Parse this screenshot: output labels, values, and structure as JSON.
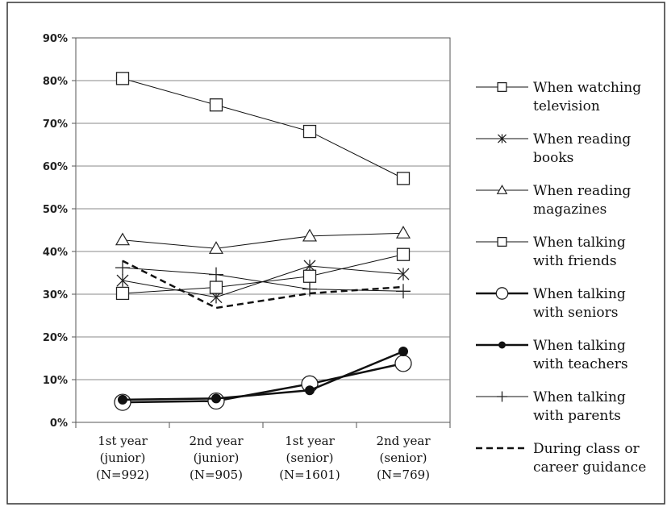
{
  "chart_data": {
    "type": "line",
    "title": "",
    "xlabel": "",
    "ylabel": "",
    "ylim": [
      0,
      90
    ],
    "yticks": [
      "0%",
      "10%",
      "20%",
      "30%",
      "40%",
      "50%",
      "60%",
      "70%",
      "80%",
      "90%"
    ],
    "categories": [
      [
        "1st year",
        "(junior)",
        "(N=992)"
      ],
      [
        "2nd year",
        "(junior)",
        "(N=905)"
      ],
      [
        "1st year",
        "(senior)",
        "(N=1601)"
      ],
      [
        "2nd year",
        "(senior)",
        "(N=769)"
      ]
    ],
    "grid": "horizontal",
    "legend_position": "right",
    "series": [
      {
        "name": [
          "When watching",
          "television"
        ],
        "values": [
          80.5,
          74.3,
          68.1,
          57.1
        ],
        "marker": "square",
        "dash": "solid",
        "width": 1
      },
      {
        "name": [
          "When reading",
          "books"
        ],
        "values": [
          33.2,
          29.3,
          36.6,
          34.7
        ],
        "marker": "asterisk",
        "dash": "solid",
        "width": 1
      },
      {
        "name": [
          "When reading",
          "magazines"
        ],
        "values": [
          42.7,
          40.7,
          43.6,
          44.3
        ],
        "marker": "triangle",
        "dash": "solid",
        "width": 1
      },
      {
        "name": [
          "When talking",
          "with friends"
        ],
        "values": [
          30.2,
          31.6,
          34.2,
          39.3
        ],
        "marker": "square",
        "dash": "solid",
        "width": 1
      },
      {
        "name": [
          "When talking",
          "with seniors"
        ],
        "values": [
          4.7,
          5.0,
          9.0,
          13.8
        ],
        "marker": "circle",
        "dash": "solid",
        "width": 2.5
      },
      {
        "name": [
          "When talking",
          "with teachers"
        ],
        "values": [
          5.3,
          5.6,
          7.5,
          16.6
        ],
        "marker": "dot",
        "dash": "solid",
        "width": 2.5
      },
      {
        "name": [
          "When talking",
          "with parents"
        ],
        "values": [
          36.2,
          34.6,
          31.2,
          30.7
        ],
        "marker": "plus",
        "dash": "solid",
        "width": 1
      },
      {
        "name": [
          "During class or",
          "career guidance"
        ],
        "values": [
          37.8,
          26.8,
          30.2,
          31.7
        ],
        "marker": "none",
        "dash": "dashed",
        "width": 2.5
      }
    ]
  }
}
